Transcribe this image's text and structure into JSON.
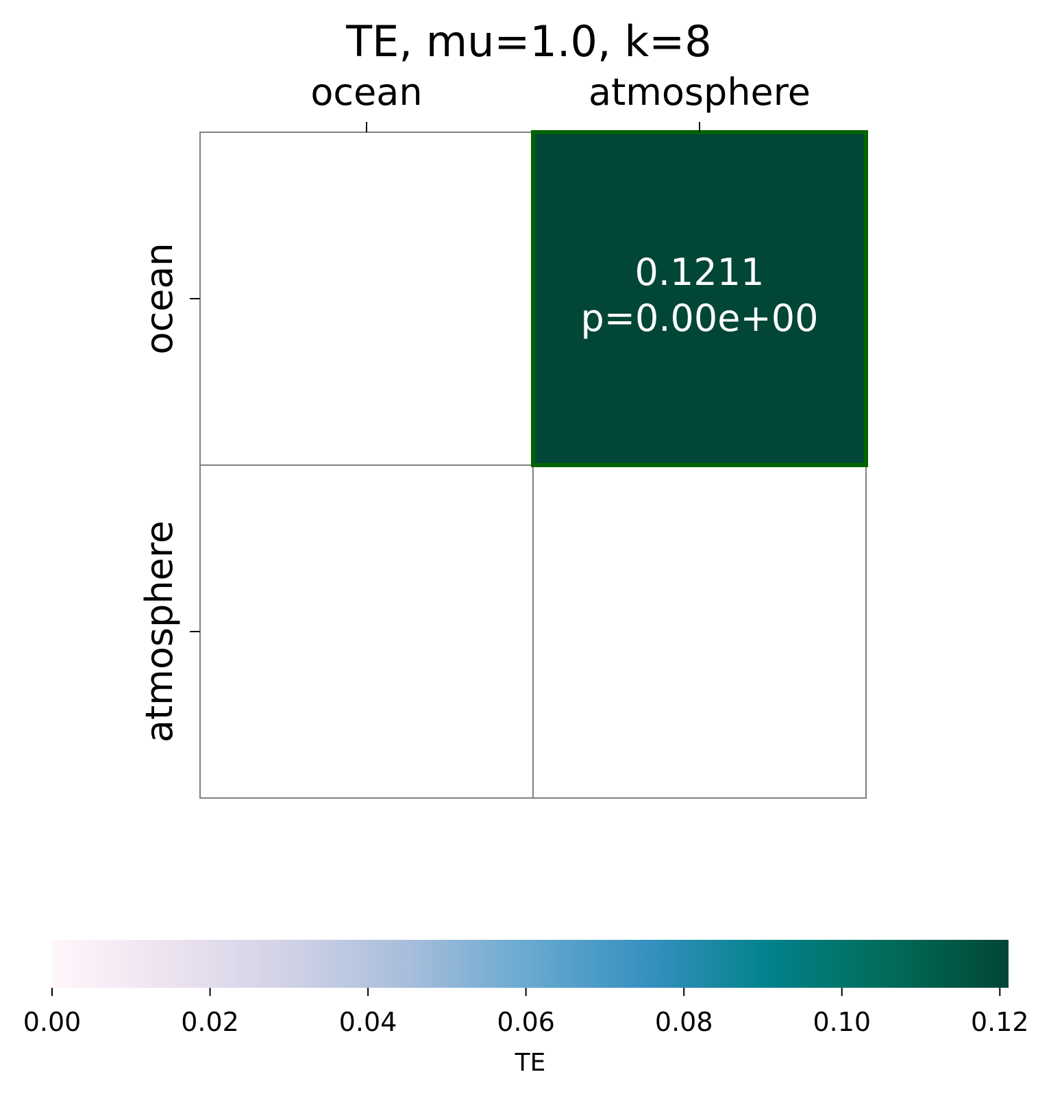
{
  "chart_data": {
    "type": "heatmap",
    "title": "TE, mu=1.0, k=8",
    "x_categories": [
      "ocean",
      "atmosphere"
    ],
    "y_categories": [
      "ocean",
      "atmosphere"
    ],
    "x_tick_position": "top",
    "cells": [
      {
        "row": 0,
        "col": 0,
        "value": null,
        "label": null,
        "highlighted": false
      },
      {
        "row": 0,
        "col": 1,
        "value": 0.1211,
        "label": "0.1211",
        "pvalue_label": "p=0.00e+00",
        "highlighted": true
      },
      {
        "row": 1,
        "col": 0,
        "value": null,
        "label": null,
        "highlighted": false
      },
      {
        "row": 1,
        "col": 1,
        "value": null,
        "label": null,
        "highlighted": false
      }
    ],
    "colorbar": {
      "label": "TE",
      "orientation": "horizontal",
      "placement": "bottom",
      "range": [
        0,
        0.1211
      ],
      "ticks": [
        0.0,
        0.02,
        0.04,
        0.06,
        0.08,
        0.1,
        0.12
      ],
      "tick_labels": [
        "0.00",
        "0.02",
        "0.04",
        "0.06",
        "0.08",
        "0.10",
        "0.12"
      ],
      "colormap": "PuBuGn",
      "colormap_stops": [
        "#fff7fb",
        "#ece2f0",
        "#d0d1e6",
        "#a6bddb",
        "#67a9cf",
        "#3690c0",
        "#02818a",
        "#016c59",
        "#014636"
      ]
    },
    "colors": {
      "grid_line": "#808080",
      "highlight_border": "#006400",
      "cell_text": "#ffffff",
      "empty_cell": "#ffffff"
    }
  }
}
